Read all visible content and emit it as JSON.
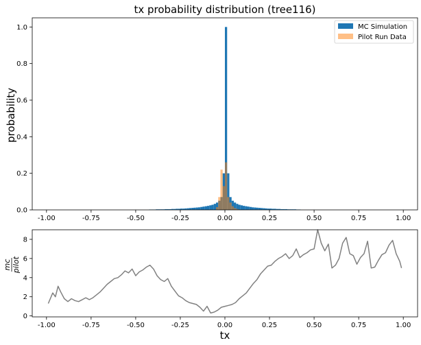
{
  "chart_data": [
    {
      "type": "bar",
      "title": "tx probability distribution (tree116)",
      "xlabel": "",
      "ylabel": "probability",
      "xlim": [
        -1.08,
        1.08
      ],
      "ylim": [
        0,
        1.05
      ],
      "xticks": [
        "-1.00",
        "-0.75",
        "-0.50",
        "-0.25",
        "0.00",
        "0.25",
        "0.50",
        "0.75",
        "1.00"
      ],
      "yticks": [
        "0.0",
        "0.2",
        "0.4",
        "0.6",
        "0.8",
        "1.0"
      ],
      "legend": "top-right",
      "bin_width": 0.0125,
      "series": [
        {
          "name": "MC Simulation",
          "color": "#1f77b4",
          "x_start": [
            -0.425,
            -0.4125,
            -0.4,
            -0.3875,
            -0.375,
            -0.3625,
            -0.35,
            -0.3375,
            -0.325,
            -0.3125,
            -0.3,
            -0.2875,
            -0.275,
            -0.2625,
            -0.25,
            -0.2375,
            -0.225,
            -0.2125,
            -0.2,
            -0.1875,
            -0.175,
            -0.1625,
            -0.15,
            -0.1375,
            -0.125,
            -0.1125,
            -0.1,
            -0.0875,
            -0.075,
            -0.0625,
            -0.05,
            -0.0375,
            -0.025,
            -0.0125,
            0.0,
            0.0125,
            0.025,
            0.0375,
            0.05,
            0.0625,
            0.075,
            0.0875,
            0.1,
            0.1125,
            0.125,
            0.1375,
            0.15,
            0.1625,
            0.175,
            0.1875,
            0.2,
            0.2125,
            0.225,
            0.2375,
            0.25,
            0.2625,
            0.275,
            0.2875,
            0.3,
            0.3125,
            0.325,
            0.3375,
            0.35,
            0.3625,
            0.375,
            0.3875,
            0.4,
            0.4125
          ],
          "values": [
            0.002,
            0.002,
            0.002,
            0.003,
            0.003,
            0.003,
            0.003,
            0.004,
            0.004,
            0.004,
            0.005,
            0.005,
            0.006,
            0.006,
            0.007,
            0.007,
            0.008,
            0.009,
            0.01,
            0.011,
            0.012,
            0.013,
            0.014,
            0.016,
            0.018,
            0.02,
            0.022,
            0.025,
            0.028,
            0.033,
            0.04,
            0.05,
            0.07,
            0.2,
            1.0,
            0.2,
            0.07,
            0.05,
            0.04,
            0.033,
            0.028,
            0.025,
            0.022,
            0.02,
            0.018,
            0.016,
            0.014,
            0.013,
            0.012,
            0.011,
            0.01,
            0.009,
            0.008,
            0.007,
            0.007,
            0.006,
            0.006,
            0.005,
            0.005,
            0.004,
            0.004,
            0.004,
            0.003,
            0.003,
            0.003,
            0.003,
            0.002,
            0.002
          ]
        },
        {
          "name": "Pilot Run Data",
          "color": "#ff7f0e",
          "x_start": [
            -0.05,
            -0.0375,
            -0.025,
            -0.0125,
            0.0,
            0.0125,
            0.025,
            0.0375,
            0.05,
            0.0625,
            0.075
          ],
          "values": [
            0.015,
            0.07,
            0.22,
            0.13,
            0.26,
            0.07,
            0.04,
            0.02,
            0.01,
            0.005,
            0.002
          ]
        }
      ]
    },
    {
      "type": "line",
      "title": "",
      "xlabel": "tx",
      "ylabel_num": "mc",
      "ylabel_den": "pilot",
      "xlim": [
        -1.08,
        1.08
      ],
      "ylim": [
        -0.1,
        9.0
      ],
      "xticks": [
        "-1.00",
        "-0.75",
        "-0.50",
        "-0.25",
        "0.00",
        "0.25",
        "0.50",
        "0.75",
        "1.00"
      ],
      "yticks": [
        "0",
        "2",
        "4",
        "6",
        "8"
      ],
      "series": [
        {
          "name": "",
          "color": "#808080",
          "x": [
            -0.99,
            -0.965,
            -0.95,
            -0.935,
            -0.92,
            -0.9,
            -0.88,
            -0.86,
            -0.84,
            -0.82,
            -0.8,
            -0.78,
            -0.76,
            -0.74,
            -0.72,
            -0.7,
            -0.68,
            -0.66,
            -0.64,
            -0.62,
            -0.6,
            -0.58,
            -0.56,
            -0.54,
            -0.52,
            -0.5,
            -0.48,
            -0.46,
            -0.44,
            -0.42,
            -0.4,
            -0.38,
            -0.36,
            -0.34,
            -0.32,
            -0.3,
            -0.28,
            -0.26,
            -0.24,
            -0.22,
            -0.2,
            -0.18,
            -0.16,
            -0.14,
            -0.12,
            -0.1,
            -0.08,
            -0.06,
            -0.04,
            -0.02,
            0.0,
            0.02,
            0.04,
            0.06,
            0.08,
            0.1,
            0.12,
            0.14,
            0.16,
            0.18,
            0.2,
            0.22,
            0.24,
            0.26,
            0.28,
            0.3,
            0.32,
            0.34,
            0.36,
            0.38,
            0.4,
            0.42,
            0.44,
            0.46,
            0.48,
            0.5,
            0.52,
            0.54,
            0.56,
            0.58,
            0.6,
            0.62,
            0.64,
            0.66,
            0.68,
            0.7,
            0.72,
            0.74,
            0.76,
            0.78,
            0.8,
            0.82,
            0.84,
            0.86,
            0.88,
            0.9,
            0.92,
            0.94,
            0.96,
            0.98,
            0.99
          ],
          "y": [
            1.3,
            2.4,
            2.0,
            3.1,
            2.5,
            1.8,
            1.5,
            1.8,
            1.6,
            1.5,
            1.7,
            1.9,
            1.7,
            1.9,
            2.2,
            2.5,
            2.9,
            3.3,
            3.6,
            3.9,
            4.0,
            4.3,
            4.7,
            4.5,
            4.9,
            4.2,
            4.6,
            4.8,
            5.1,
            5.3,
            4.9,
            4.2,
            3.8,
            3.6,
            3.9,
            3.1,
            2.6,
            2.1,
            1.9,
            1.6,
            1.4,
            1.3,
            1.2,
            0.9,
            0.5,
            1.0,
            0.3,
            0.4,
            0.6,
            0.9,
            1.0,
            1.1,
            1.2,
            1.4,
            1.8,
            2.1,
            2.4,
            2.9,
            3.4,
            3.8,
            4.4,
            4.8,
            5.2,
            5.3,
            5.7,
            6.0,
            6.2,
            6.5,
            6.0,
            6.3,
            7.0,
            6.1,
            6.4,
            6.6,
            6.9,
            7.0,
            9.0,
            7.6,
            6.8,
            7.5,
            5.0,
            5.3,
            6.0,
            7.6,
            8.2,
            6.5,
            6.3,
            5.4,
            6.1,
            6.5,
            7.8,
            5.0,
            5.1,
            5.8,
            6.4,
            6.6,
            7.4,
            7.9,
            6.5,
            5.7,
            5.0
          ]
        }
      ]
    }
  ]
}
